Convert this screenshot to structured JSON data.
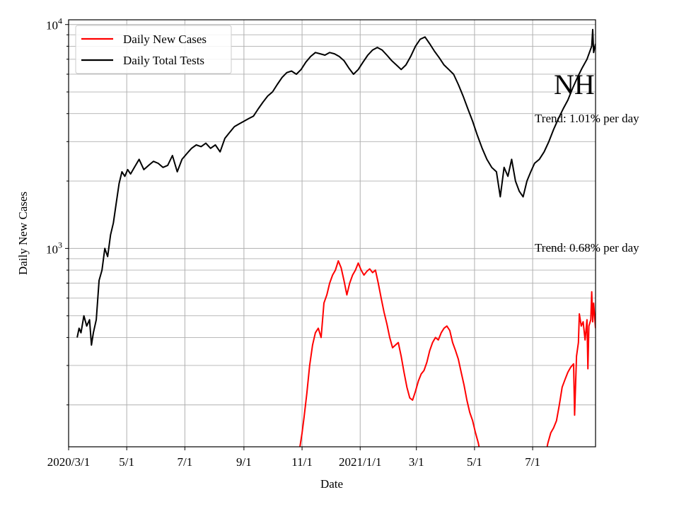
{
  "chart_data": {
    "type": "line",
    "xlabel": "Date",
    "ylabel": "Daily New Cases",
    "y_scale": "log",
    "ylim": [
      130,
      10500
    ],
    "xlim": [
      "2020-03-01",
      "2021-09-05"
    ],
    "grid": true,
    "legend_position": "top-left",
    "x_tick_labels": [
      "2020/3/1",
      "5/1",
      "7/1",
      "9/1",
      "11/1",
      "2021/1/1",
      "3/1",
      "5/1",
      "7/1"
    ],
    "x_tick_dates": [
      "2020-03-01",
      "2020-05-01",
      "2020-07-01",
      "2020-09-01",
      "2020-11-01",
      "2021-01-01",
      "2021-03-01",
      "2021-05-01",
      "2021-07-01"
    ],
    "y_ticks": [
      {
        "value": 1000,
        "base": "10",
        "exp": "3"
      },
      {
        "value": 10000,
        "base": "10",
        "exp": "4"
      }
    ],
    "state_label": "NH",
    "annotations": [
      "Trend: 1.01% per day",
      "Trend: 0.68% per day"
    ],
    "series": [
      {
        "name": "Daily New Cases",
        "color": "#ff0000",
        "points": [
          [
            "2020-10-28",
            115
          ],
          [
            "2020-10-30",
            132
          ],
          [
            "2020-11-01",
            150
          ],
          [
            "2020-11-03",
            175
          ],
          [
            "2020-11-06",
            225
          ],
          [
            "2020-11-09",
            300
          ],
          [
            "2020-11-12",
            370
          ],
          [
            "2020-11-15",
            420
          ],
          [
            "2020-11-18",
            440
          ],
          [
            "2020-11-21",
            400
          ],
          [
            "2020-11-24",
            570
          ],
          [
            "2020-11-27",
            620
          ],
          [
            "2020-11-30",
            700
          ],
          [
            "2020-12-03",
            760
          ],
          [
            "2020-12-06",
            800
          ],
          [
            "2020-12-09",
            880
          ],
          [
            "2020-12-12",
            820
          ],
          [
            "2020-12-15",
            720
          ],
          [
            "2020-12-18",
            620
          ],
          [
            "2020-12-21",
            700
          ],
          [
            "2020-12-24",
            760
          ],
          [
            "2020-12-27",
            800
          ],
          [
            "2020-12-30",
            860
          ],
          [
            "2021-01-02",
            800
          ],
          [
            "2021-01-05",
            760
          ],
          [
            "2021-01-08",
            790
          ],
          [
            "2021-01-11",
            810
          ],
          [
            "2021-01-14",
            780
          ],
          [
            "2021-01-17",
            800
          ],
          [
            "2021-01-20",
            700
          ],
          [
            "2021-01-23",
            600
          ],
          [
            "2021-01-26",
            520
          ],
          [
            "2021-01-29",
            460
          ],
          [
            "2021-02-01",
            400
          ],
          [
            "2021-02-04",
            360
          ],
          [
            "2021-02-07",
            370
          ],
          [
            "2021-02-10",
            380
          ],
          [
            "2021-02-13",
            330
          ],
          [
            "2021-02-16",
            280
          ],
          [
            "2021-02-19",
            240
          ],
          [
            "2021-02-22",
            215
          ],
          [
            "2021-02-25",
            210
          ],
          [
            "2021-02-28",
            230
          ],
          [
            "2021-03-03",
            255
          ],
          [
            "2021-03-06",
            275
          ],
          [
            "2021-03-09",
            285
          ],
          [
            "2021-03-12",
            310
          ],
          [
            "2021-03-15",
            350
          ],
          [
            "2021-03-18",
            380
          ],
          [
            "2021-03-21",
            400
          ],
          [
            "2021-03-24",
            390
          ],
          [
            "2021-03-27",
            420
          ],
          [
            "2021-03-30",
            440
          ],
          [
            "2021-04-02",
            450
          ],
          [
            "2021-04-05",
            430
          ],
          [
            "2021-04-08",
            380
          ],
          [
            "2021-04-11",
            350
          ],
          [
            "2021-04-14",
            320
          ],
          [
            "2021-04-17",
            280
          ],
          [
            "2021-04-20",
            245
          ],
          [
            "2021-04-23",
            210
          ],
          [
            "2021-04-26",
            185
          ],
          [
            "2021-04-29",
            170
          ],
          [
            "2021-05-02",
            150
          ],
          [
            "2021-05-05",
            135
          ],
          [
            "2021-05-07",
            122
          ],
          null,
          [
            "2021-07-15",
            122
          ],
          [
            "2021-07-17",
            135
          ],
          [
            "2021-07-20",
            150
          ],
          [
            "2021-07-23",
            158
          ],
          [
            "2021-07-26",
            170
          ],
          [
            "2021-07-29",
            200
          ],
          [
            "2021-08-01",
            240
          ],
          [
            "2021-08-04",
            260
          ],
          [
            "2021-08-07",
            280
          ],
          [
            "2021-08-10",
            295
          ],
          [
            "2021-08-13",
            305
          ],
          [
            "2021-08-14",
            180
          ],
          [
            "2021-08-16",
            330
          ],
          [
            "2021-08-18",
            380
          ],
          [
            "2021-08-19",
            510
          ],
          [
            "2021-08-21",
            450
          ],
          [
            "2021-08-23",
            470
          ],
          [
            "2021-08-25",
            390
          ],
          [
            "2021-08-27",
            480
          ],
          [
            "2021-08-28",
            290
          ],
          [
            "2021-08-29",
            450
          ],
          [
            "2021-08-31",
            480
          ],
          [
            "2021-09-01",
            640
          ],
          [
            "2021-09-02",
            470
          ],
          [
            "2021-09-03",
            570
          ],
          [
            "2021-09-05",
            440
          ]
        ]
      },
      {
        "name": "Daily Total Tests",
        "color": "#000000",
        "points": [
          [
            "2020-03-10",
            400
          ],
          [
            "2020-03-12",
            440
          ],
          [
            "2020-03-14",
            420
          ],
          [
            "2020-03-17",
            500
          ],
          [
            "2020-03-20",
            450
          ],
          [
            "2020-03-23",
            480
          ],
          [
            "2020-03-25",
            370
          ],
          [
            "2020-03-27",
            420
          ],
          [
            "2020-03-30",
            480
          ],
          [
            "2020-04-02",
            720
          ],
          [
            "2020-04-05",
            800
          ],
          [
            "2020-04-08",
            1000
          ],
          [
            "2020-04-11",
            920
          ],
          [
            "2020-04-14",
            1150
          ],
          [
            "2020-04-17",
            1300
          ],
          [
            "2020-04-20",
            1600
          ],
          [
            "2020-04-23",
            1950
          ],
          [
            "2020-04-26",
            2200
          ],
          [
            "2020-04-29",
            2100
          ],
          [
            "2020-05-02",
            2250
          ],
          [
            "2020-05-05",
            2150
          ],
          [
            "2020-05-09",
            2300
          ],
          [
            "2020-05-14",
            2500
          ],
          [
            "2020-05-19",
            2250
          ],
          [
            "2020-05-24",
            2350
          ],
          [
            "2020-05-29",
            2450
          ],
          [
            "2020-06-03",
            2400
          ],
          [
            "2020-06-08",
            2300
          ],
          [
            "2020-06-13",
            2350
          ],
          [
            "2020-06-18",
            2600
          ],
          [
            "2020-06-23",
            2200
          ],
          [
            "2020-06-28",
            2500
          ],
          [
            "2020-07-03",
            2650
          ],
          [
            "2020-07-08",
            2800
          ],
          [
            "2020-07-13",
            2900
          ],
          [
            "2020-07-18",
            2850
          ],
          [
            "2020-07-23",
            2950
          ],
          [
            "2020-07-28",
            2800
          ],
          [
            "2020-08-02",
            2900
          ],
          [
            "2020-08-07",
            2700
          ],
          [
            "2020-08-12",
            3100
          ],
          [
            "2020-08-17",
            3300
          ],
          [
            "2020-08-22",
            3500
          ],
          [
            "2020-08-27",
            3600
          ],
          [
            "2020-09-01",
            3700
          ],
          [
            "2020-09-06",
            3800
          ],
          [
            "2020-09-11",
            3900
          ],
          [
            "2020-09-16",
            4200
          ],
          [
            "2020-09-21",
            4500
          ],
          [
            "2020-09-26",
            4800
          ],
          [
            "2020-10-01",
            5000
          ],
          [
            "2020-10-06",
            5400
          ],
          [
            "2020-10-11",
            5800
          ],
          [
            "2020-10-16",
            6100
          ],
          [
            "2020-10-21",
            6200
          ],
          [
            "2020-10-26",
            6000
          ],
          [
            "2020-10-31",
            6300
          ],
          [
            "2020-11-05",
            6800
          ],
          [
            "2020-11-10",
            7200
          ],
          [
            "2020-11-15",
            7500
          ],
          [
            "2020-11-20",
            7400
          ],
          [
            "2020-11-25",
            7300
          ],
          [
            "2020-11-30",
            7500
          ],
          [
            "2020-12-05",
            7400
          ],
          [
            "2020-12-10",
            7200
          ],
          [
            "2020-12-15",
            6900
          ],
          [
            "2020-12-20",
            6400
          ],
          [
            "2020-12-25",
            6000
          ],
          [
            "2020-12-30",
            6300
          ],
          [
            "2021-01-04",
            6800
          ],
          [
            "2021-01-09",
            7300
          ],
          [
            "2021-01-14",
            7700
          ],
          [
            "2021-01-19",
            7900
          ],
          [
            "2021-01-24",
            7700
          ],
          [
            "2021-01-29",
            7300
          ],
          [
            "2021-02-03",
            6900
          ],
          [
            "2021-02-08",
            6600
          ],
          [
            "2021-02-13",
            6300
          ],
          [
            "2021-02-18",
            6600
          ],
          [
            "2021-02-23",
            7200
          ],
          [
            "2021-02-28",
            8000
          ],
          [
            "2021-03-05",
            8600
          ],
          [
            "2021-03-10",
            8800
          ],
          [
            "2021-03-15",
            8200
          ],
          [
            "2021-03-20",
            7600
          ],
          [
            "2021-03-25",
            7100
          ],
          [
            "2021-03-30",
            6600
          ],
          [
            "2021-04-04",
            6300
          ],
          [
            "2021-04-09",
            6000
          ],
          [
            "2021-04-14",
            5400
          ],
          [
            "2021-04-19",
            4800
          ],
          [
            "2021-04-24",
            4200
          ],
          [
            "2021-04-29",
            3700
          ],
          [
            "2021-05-04",
            3200
          ],
          [
            "2021-05-09",
            2800
          ],
          [
            "2021-05-14",
            2500
          ],
          [
            "2021-05-19",
            2300
          ],
          [
            "2021-05-24",
            2200
          ],
          [
            "2021-05-28",
            1700
          ],
          [
            "2021-06-01",
            2300
          ],
          [
            "2021-06-05",
            2100
          ],
          [
            "2021-06-09",
            2500
          ],
          [
            "2021-06-13",
            2000
          ],
          [
            "2021-06-17",
            1800
          ],
          [
            "2021-06-21",
            1700
          ],
          [
            "2021-06-25",
            2000
          ],
          [
            "2021-06-29",
            2200
          ],
          [
            "2021-07-03",
            2400
          ],
          [
            "2021-07-08",
            2500
          ],
          [
            "2021-07-13",
            2700
          ],
          [
            "2021-07-18",
            3000
          ],
          [
            "2021-07-23",
            3400
          ],
          [
            "2021-07-28",
            3800
          ],
          [
            "2021-08-02",
            4200
          ],
          [
            "2021-08-07",
            4600
          ],
          [
            "2021-08-12",
            5200
          ],
          [
            "2021-08-17",
            5800
          ],
          [
            "2021-08-22",
            6400
          ],
          [
            "2021-08-27",
            7000
          ],
          [
            "2021-09-01",
            8000
          ],
          [
            "2021-09-02",
            9500
          ],
          [
            "2021-09-03",
            7500
          ],
          [
            "2021-09-05",
            8200
          ]
        ]
      }
    ]
  }
}
